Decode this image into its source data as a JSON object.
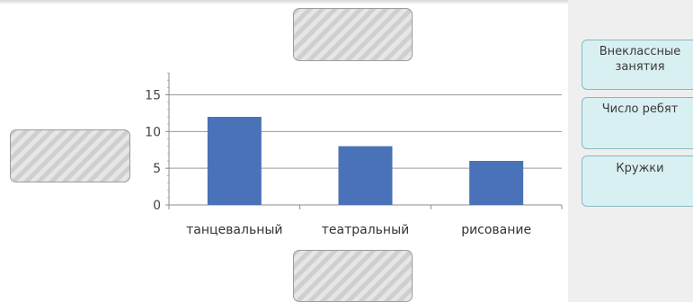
{
  "chart_data": {
    "type": "bar",
    "categories": [
      "танцевальный",
      "театральный",
      "рисование"
    ],
    "values": [
      12,
      8,
      6
    ],
    "yticks": [
      0,
      5,
      10,
      15
    ],
    "ylim": [
      0,
      18
    ],
    "grid": true,
    "colors": {
      "bar": "#4a72b8",
      "grid": "#9a9a9a",
      "axis": "#8c8c8c"
    }
  },
  "answer_options": [
    {
      "line1": "Внеклассные",
      "line2": "занятия"
    },
    {
      "line1": "Число ребят",
      "line2": ""
    },
    {
      "line1": "Кружки",
      "line2": ""
    }
  ]
}
